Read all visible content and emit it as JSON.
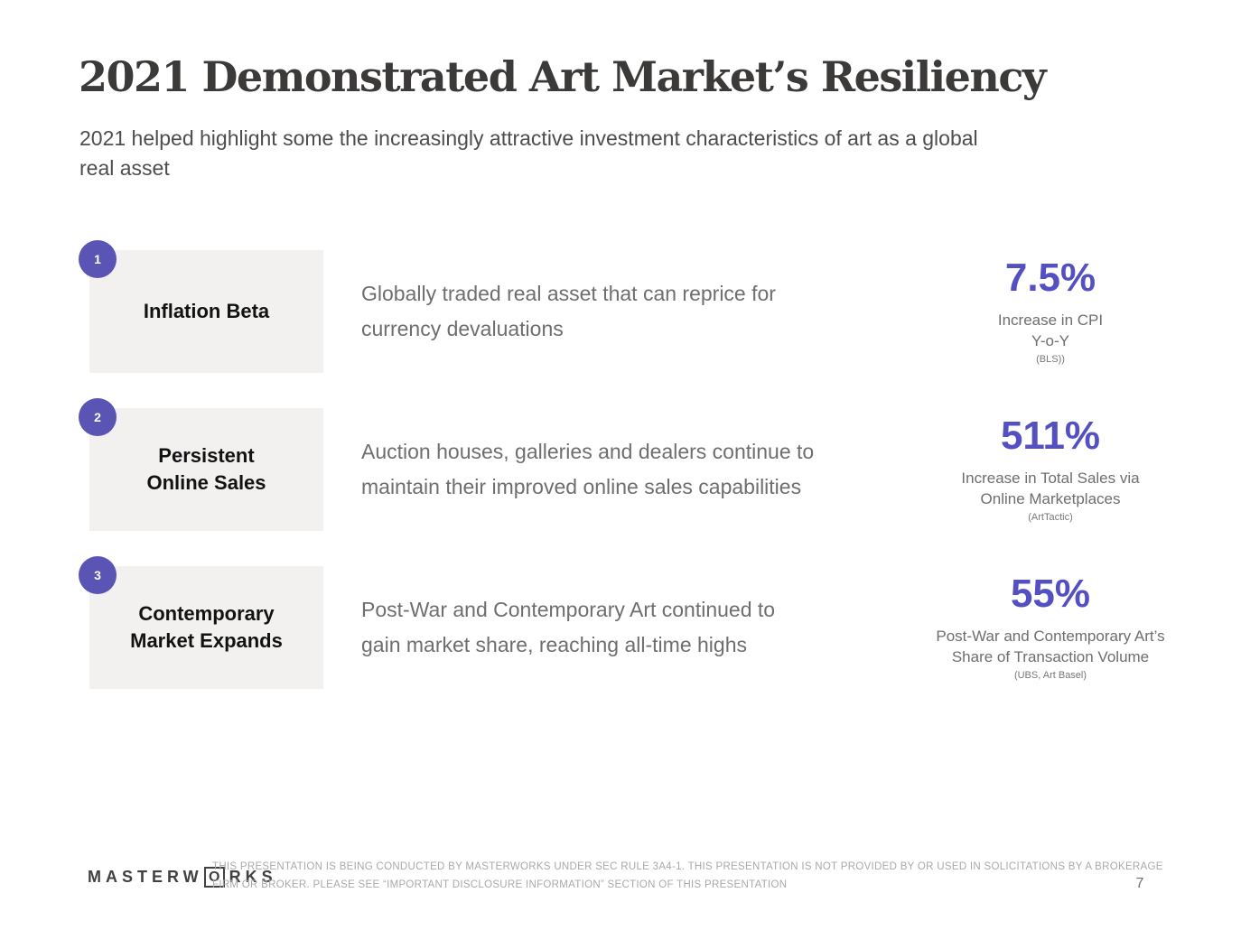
{
  "slide": {
    "title": "2021 Demonstrated Art Market’s Resiliency",
    "subtitle_line1": "2021 helped highlight some the increasingly attractive investment characteristics of art as a global",
    "subtitle_line2": "real asset",
    "page_number": "7"
  },
  "rows": [
    {
      "number": "1",
      "label_line1": "Inflation Beta",
      "label_line2": "",
      "desc_line1": "Globally traded real asset that can reprice for",
      "desc_line2": "currency devaluations",
      "stat_value": "7.5%",
      "stat_caption_line1": "Increase in CPI",
      "stat_caption_line2": "Y-o-Y",
      "stat_source": "(BLS))"
    },
    {
      "number": "2",
      "label_line1": "Persistent",
      "label_line2": "Online Sales",
      "desc_line1": "Auction houses, galleries and dealers continue to",
      "desc_line2": "maintain their improved online sales capabilities",
      "stat_value": "511%",
      "stat_caption_line1": "Increase in Total Sales via",
      "stat_caption_line2": "Online Marketplaces",
      "stat_source": "(ArtTactic)"
    },
    {
      "number": "3",
      "label_line1": "Contemporary",
      "label_line2": "Market Expands",
      "desc_line1": "Post-War and Contemporary Art continued to",
      "desc_line2": "gain market share, reaching all-time highs",
      "stat_value": "55%",
      "stat_caption_line1": "Post-War and Contemporary Art’s",
      "stat_caption_line2": "Share of Transaction Volume",
      "stat_source": "(UBS, Art Basel)"
    }
  ],
  "footer": {
    "logo_prefix": "MASTERW",
    "logo_boxed_letter": "O",
    "logo_suffix": "RKS",
    "disclaimer_line1": "THIS PRESENTATION  IS BEING CONDUCTED BY MASTERWORKS UNDER SEC RULE 3A4-1. THIS PRESENTATION  IS NOT PROVIDED BY OR USED IN SOLICITATIONS BY A BROKERAGE",
    "disclaimer_line2": "FIRM OR BROKER. PLEASE SEE “IMPORTANT DISCLOSURE INFORMATION” SECTION OF THIS PRESENTATION"
  },
  "colors": {
    "accent_purple": "#5450c1",
    "badge_purple": "#5a54b5",
    "tile_gray": "#f2f1f0",
    "title_color": "#3b3a39",
    "body_gray": "#6e6e70",
    "footer_gray": "#a8a9ab"
  }
}
